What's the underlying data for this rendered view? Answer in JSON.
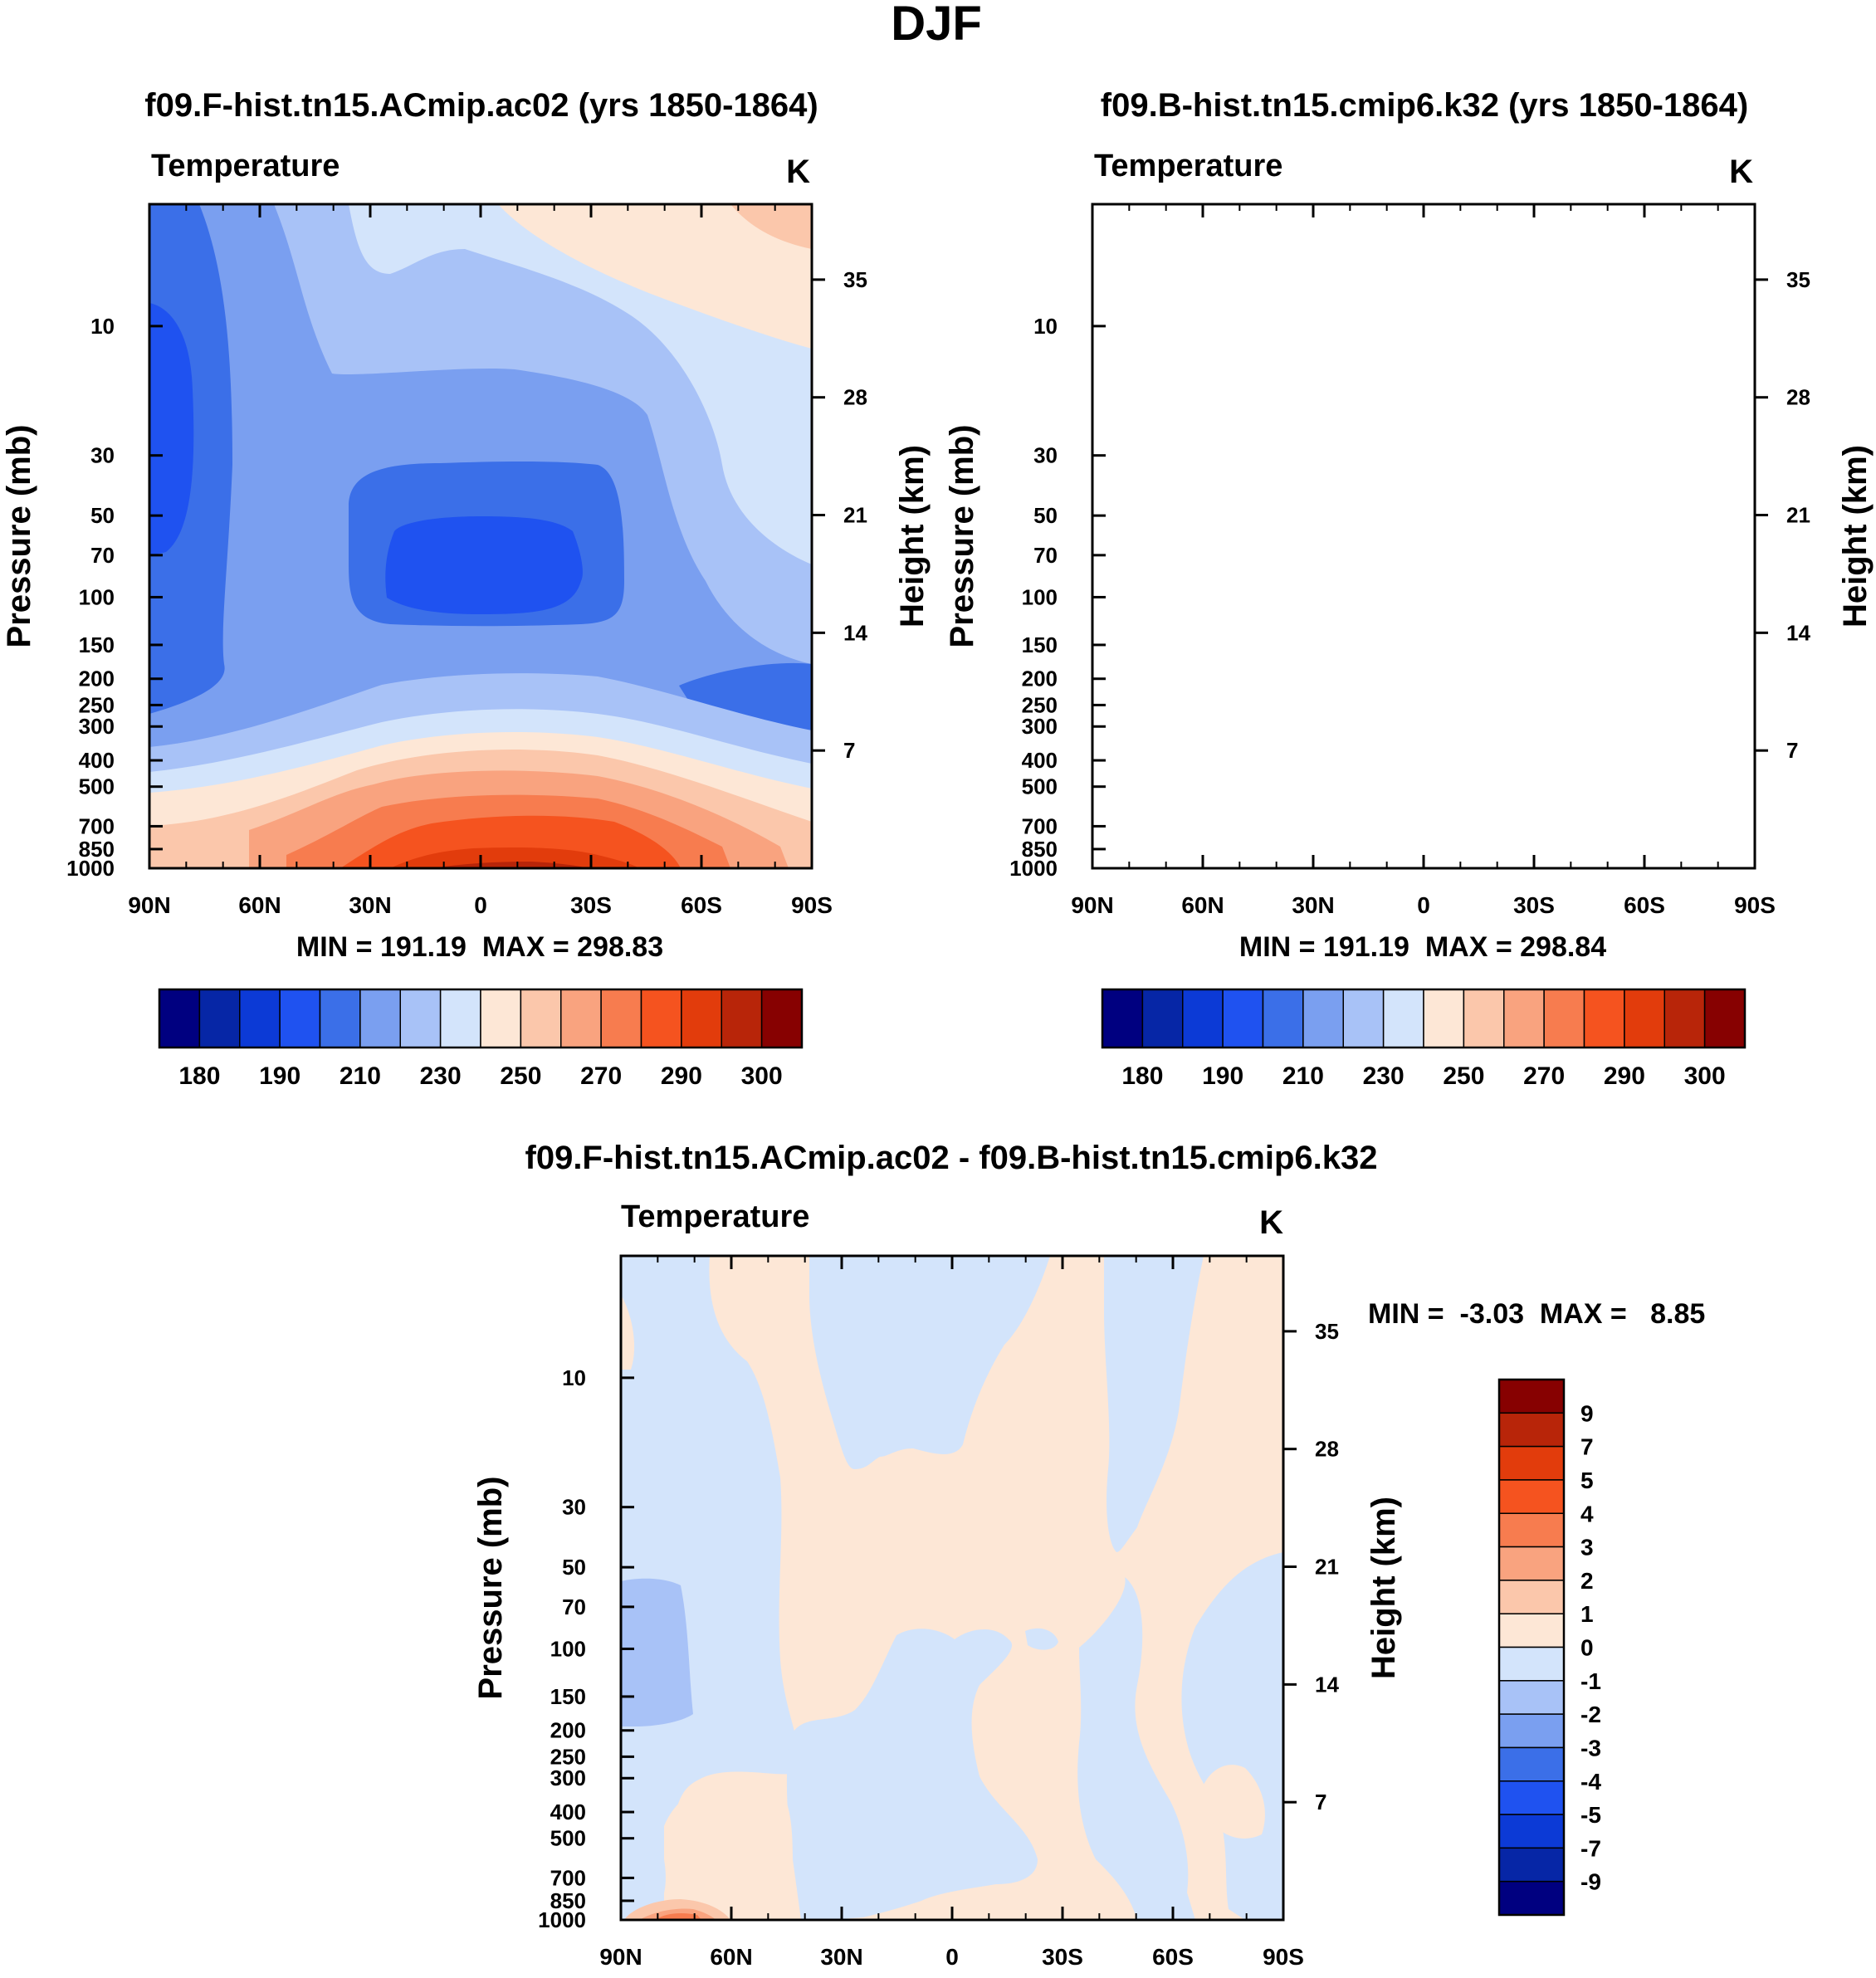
{
  "figure": {
    "title": "DJF"
  },
  "colors": {
    "main_levels": [
      "#000080",
      "#0626a6",
      "#0c3ad6",
      "#1f52f0",
      "#3b6fe8",
      "#7a9ff0",
      "#a8c2f7",
      "#d3e4fb",
      "#fde7d6",
      "#fbc7ab",
      "#f9a37f",
      "#f77c4f",
      "#f5531f",
      "#e23c0c",
      "#b82509",
      "#870101"
    ],
    "diff_levels": [
      "#000080",
      "#0626a6",
      "#0c3ad6",
      "#1f52f0",
      "#3b6fe8",
      "#7a9ff0",
      "#a8c2f7",
      "#d3e4fb",
      "#fde7d6",
      "#fbc7ab",
      "#f9a37f",
      "#f77c4f",
      "#f5531f",
      "#e23c0c",
      "#b82509",
      "#870101"
    ]
  },
  "chart_data": [
    {
      "type": "contour",
      "title": "f09.F-hist.tn15.ACmip.ac02 (yrs 1850-1864)",
      "variable": "Temperature",
      "units": "K",
      "xlabel": "",
      "ylabel": "Pressure (mb)",
      "ylabel_right": "Height (km)",
      "x_ticks": [
        "90N",
        "60N",
        "30N",
        "0",
        "30S",
        "60S",
        "90S"
      ],
      "pressure_ticks": [
        10,
        30,
        50,
        70,
        100,
        150,
        200,
        250,
        300,
        400,
        500,
        700,
        850,
        1000
      ],
      "height_ticks": [
        35,
        28,
        21,
        14,
        7
      ],
      "stats": "MIN = 191.19  MAX = 298.83",
      "colorbar_labels": [
        "180",
        "190",
        "210",
        "230",
        "250",
        "270",
        "290",
        "300"
      ]
    },
    {
      "type": "contour",
      "title": "f09.B-hist.tn15.cmip6.k32 (yrs 1850-1864)",
      "variable": "Temperature",
      "units": "K",
      "xlabel": "",
      "ylabel": "Pressure (mb)",
      "ylabel_right": "Height (km)",
      "x_ticks": [
        "90N",
        "60N",
        "30N",
        "0",
        "30S",
        "60S",
        "90S"
      ],
      "pressure_ticks": [
        10,
        30,
        50,
        70,
        100,
        150,
        200,
        250,
        300,
        400,
        500,
        700,
        850,
        1000
      ],
      "height_ticks": [
        35,
        28,
        21,
        14,
        7
      ],
      "stats": "MIN = 191.19  MAX = 298.84",
      "colorbar_labels": [
        "180",
        "190",
        "210",
        "230",
        "250",
        "270",
        "290",
        "300"
      ]
    },
    {
      "type": "contour",
      "title": "f09.F-hist.tn15.ACmip.ac02 - f09.B-hist.tn15.cmip6.k32",
      "variable": "Temperature",
      "units": "K",
      "ylabel": "Pressure (mb)",
      "ylabel_right": "Height (km)",
      "x_ticks": [
        "90N",
        "60N",
        "30N",
        "0",
        "30S",
        "60S",
        "90S"
      ],
      "pressure_ticks": [
        10,
        30,
        50,
        70,
        100,
        150,
        200,
        250,
        300,
        400,
        500,
        700,
        850,
        1000
      ],
      "height_ticks": [
        35,
        28,
        21,
        14,
        7
      ],
      "stats": "MIN =  -3.03  MAX =   8.85",
      "colorbar_labels": [
        "9",
        "7",
        "5",
        "4",
        "3",
        "2",
        "1",
        "0",
        "-1",
        "-2",
        "-3",
        "-4",
        "-5",
        "-7",
        "-9"
      ]
    }
  ]
}
